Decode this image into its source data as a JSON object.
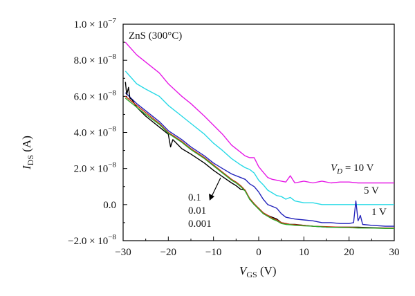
{
  "chart_data": {
    "type": "line",
    "title": "ZnS (300°C)",
    "xlabel": {
      "main": "V",
      "sub": "GS",
      "unit": " (V)"
    },
    "ylabel": {
      "main": "I",
      "sub": "DS",
      "unit": " (A)"
    },
    "xlim": [
      -30,
      30
    ],
    "ylim": [
      -2e-08,
      1e-07
    ],
    "xticks": [
      -30,
      -20,
      -10,
      0,
      10,
      20,
      30
    ],
    "xtick_labels": [
      "−30",
      "−20",
      "−10",
      "0",
      "10",
      "20",
      "30"
    ],
    "yticks": [
      -2e-08,
      0,
      2e-08,
      4e-08,
      6e-08,
      8e-08,
      1e-07
    ],
    "ytick_labels": [
      {
        "mant": "−2.0 × 10",
        "exp": "−8"
      },
      {
        "mant": "0.0",
        "exp": ""
      },
      {
        "mant": "2.0 × 10",
        "exp": "−8"
      },
      {
        "mant": "4.0 × 10",
        "exp": "−8"
      },
      {
        "mant": "6.0 × 10",
        "exp": "−8"
      },
      {
        "mant": "8.0 × 10",
        "exp": "−8"
      },
      {
        "mant": "1.0 × 10",
        "exp": "−7"
      }
    ],
    "grid": false,
    "series": [
      {
        "name": "V_D = 10 V",
        "color": "#e619e6",
        "x": [
          -29.5,
          -27,
          -25,
          -22,
          -20,
          -17,
          -15,
          -12,
          -10,
          -8,
          -6,
          -4,
          -3,
          -2,
          -1,
          0,
          1,
          2,
          3,
          4,
          5,
          6,
          7,
          8,
          10,
          12,
          14,
          16,
          18,
          20,
          22,
          25,
          28,
          30
        ],
        "y": [
          9e-08,
          8.3e-08,
          7.9e-08,
          7.3e-08,
          6.7e-08,
          6e-08,
          5.6e-08,
          4.9e-08,
          4.4e-08,
          3.9e-08,
          3.3e-08,
          2.9e-08,
          2.7e-08,
          2.6e-08,
          2.6e-08,
          2.1e-08,
          1.8e-08,
          1.5e-08,
          1.4e-08,
          1.35e-08,
          1.3e-08,
          1.25e-08,
          1.6e-08,
          1.2e-08,
          1.3e-08,
          1.2e-08,
          1.3e-08,
          1.2e-08,
          1.25e-08,
          1.25e-08,
          1.2e-08,
          1.2e-08,
          1.2e-08,
          1.2e-08
        ]
      },
      {
        "name": "5 V",
        "color": "#26d9e6",
        "x": [
          -29.5,
          -27,
          -25,
          -22,
          -20,
          -17,
          -15,
          -12,
          -10,
          -8,
          -6,
          -4,
          -3,
          -2,
          -1,
          0,
          1,
          2,
          3,
          4,
          5,
          6,
          7,
          8,
          10,
          12,
          14,
          16,
          18,
          20,
          22,
          25,
          28,
          30
        ],
        "y": [
          7.4e-08,
          6.7e-08,
          6.4e-08,
          6e-08,
          5.5e-08,
          4.9e-08,
          4.5e-08,
          3.9e-08,
          3.4e-08,
          3e-08,
          2.55e-08,
          2.2e-08,
          2.05e-08,
          1.95e-08,
          1.75e-08,
          1.35e-08,
          1.1e-08,
          8e-09,
          6.5e-09,
          5e-09,
          4.5e-09,
          3e-09,
          4e-09,
          2e-09,
          1e-09,
          1e-09,
          0.0,
          0.0,
          0.0,
          0.0,
          0.0,
          0.0,
          0.0,
          0.0
        ]
      },
      {
        "name": "1 V",
        "color": "#2222bb",
        "x": [
          -29.5,
          -27,
          -25,
          -22,
          -20,
          -17,
          -15,
          -12,
          -10,
          -8,
          -6,
          -4,
          -3,
          -2,
          -1,
          0,
          1,
          2,
          3,
          4,
          5,
          6,
          7,
          8,
          10,
          12,
          14,
          16,
          18,
          20,
          21,
          21.5,
          22,
          22.5,
          23,
          25,
          28,
          30
        ],
        "y": [
          6.2e-08,
          5.6e-08,
          5.2e-08,
          4.6e-08,
          4.1e-08,
          3.6e-08,
          3.2e-08,
          2.7e-08,
          2.3e-08,
          2e-08,
          1.7e-08,
          1.5e-08,
          1.4e-08,
          1.15e-08,
          1e-08,
          7e-09,
          3e-09,
          0.0,
          -1e-09,
          -2e-09,
          -5e-09,
          -7e-09,
          -7.5e-09,
          -8e-09,
          -8.5e-09,
          -9e-09,
          -1e-08,
          -1e-08,
          -1.05e-08,
          -1.05e-08,
          -1e-08,
          2e-09,
          -9e-09,
          -6e-09,
          -1.1e-08,
          -1.15e-08,
          -1.2e-08,
          -1.2e-08
        ]
      },
      {
        "name": "0.1",
        "color": "#000000",
        "x": [
          -29.5,
          -29.2,
          -28.8,
          -28.5,
          -28,
          -27,
          -25,
          -22,
          -20,
          -19.5,
          -19,
          -17,
          -15,
          -12,
          -10,
          -8,
          -6,
          -5,
          -4,
          -3,
          -2,
          -1,
          0,
          1,
          2,
          3,
          4,
          5,
          6,
          7,
          8,
          10,
          12,
          15,
          18,
          20,
          22,
          25,
          28,
          30
        ],
        "y": [
          6.8e-08,
          6.1e-08,
          6.5e-08,
          5.9e-08,
          5.8e-08,
          5.4e-08,
          4.9e-08,
          4.3e-08,
          3.9e-08,
          3.2e-08,
          3.6e-08,
          3.1e-08,
          2.8e-08,
          2.3e-08,
          1.9e-08,
          1.55e-08,
          1.2e-08,
          1.05e-08,
          8.5e-09,
          8e-09,
          3e-09,
          0.0,
          -2e-09,
          -4.5e-09,
          -6e-09,
          -7e-09,
          -8e-09,
          -1e-08,
          -1.05e-08,
          -1.1e-08,
          -1.1e-08,
          -1.15e-08,
          -1.2e-08,
          -1.25e-08,
          -1.25e-08,
          -1.25e-08,
          -1.25e-08,
          -1.28e-08,
          -1.3e-08,
          -1.3e-08
        ]
      },
      {
        "name": "0.01",
        "color": "#cc3311",
        "x": [
          -29.5,
          -27,
          -25,
          -22,
          -20,
          -17,
          -15,
          -12,
          -10,
          -8,
          -6,
          -5,
          -4,
          -3,
          -2,
          -1,
          0,
          1,
          2,
          3,
          4,
          5,
          6,
          7,
          8,
          10,
          12,
          15,
          18,
          20,
          22,
          25,
          28,
          30
        ],
        "y": [
          6e-08,
          5.5e-08,
          5.1e-08,
          4.5e-08,
          4e-08,
          3.5e-08,
          3.1e-08,
          2.6e-08,
          2.2e-08,
          1.8e-08,
          1.4e-08,
          1.25e-08,
          1.05e-08,
          8e-09,
          3.5e-09,
          5e-10,
          -2e-09,
          -4.5e-09,
          -6e-09,
          -7.5e-09,
          -8.5e-09,
          -1e-08,
          -1.05e-08,
          -1.1e-08,
          -1.12e-08,
          -1.15e-08,
          -1.2e-08,
          -1.22e-08,
          -1.25e-08,
          -1.25e-08,
          -1.28e-08,
          -1.3e-08,
          -1.3e-08,
          -1.3e-08
        ]
      },
      {
        "name": "0.001",
        "color": "#2eaa2e",
        "x": [
          -29.5,
          -27,
          -25,
          -22,
          -20,
          -17,
          -15,
          -12,
          -10,
          -8,
          -6,
          -5,
          -4,
          -3,
          -2,
          -1,
          0,
          1,
          2,
          3,
          4,
          5,
          6,
          7,
          8,
          10,
          12,
          15,
          18,
          20,
          22,
          25,
          28,
          30
        ],
        "y": [
          5.9e-08,
          5.4e-08,
          5e-08,
          4.45e-08,
          3.95e-08,
          3.45e-08,
          3.05e-08,
          2.55e-08,
          2.15e-08,
          1.75e-08,
          1.35e-08,
          1.2e-08,
          1e-08,
          7.5e-09,
          3e-09,
          0.0,
          -2.5e-09,
          -5e-09,
          -6.5e-09,
          -8e-09,
          -9e-09,
          -1.05e-08,
          -1.1e-08,
          -1.12e-08,
          -1.15e-08,
          -1.18e-08,
          -1.2e-08,
          -1.25e-08,
          -1.27e-08,
          -1.28e-08,
          -1.3e-08,
          -1.3e-08,
          -1.32e-08,
          -1.32e-08
        ]
      }
    ],
    "annotations": {
      "vd10": {
        "pre": "V",
        "sub": "D",
        "post": " = 10 V"
      },
      "v5": "5 V",
      "v1": "1 V",
      "low_labels": [
        "0.1",
        "0.01",
        "0.001"
      ]
    }
  }
}
